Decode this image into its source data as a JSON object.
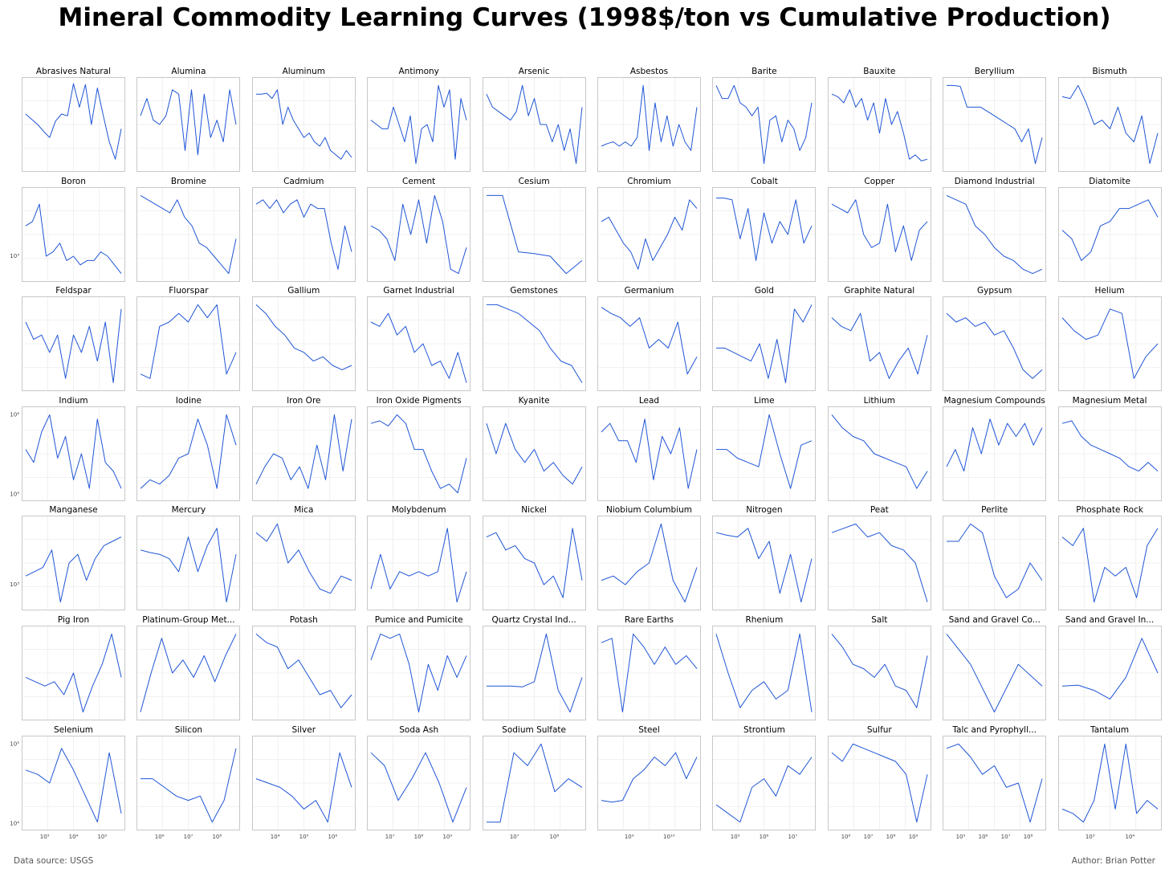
{
  "title": "Mineral Commodity Learning Curves (1998$/ton vs Cumulative Production)",
  "footer": {
    "source": "Data source: USGS",
    "author": "Author: Brian Potter"
  },
  "colors": {
    "line": "#1f55d6",
    "frame": "#c8c8c8",
    "grid": "#ececec"
  },
  "chart_data": {
    "type": "line",
    "layout": {
      "rows": 7,
      "cols": 10,
      "scale": "log-log",
      "grid": true,
      "legend": "none"
    },
    "panels": [
      {
        "name": "Abrasives Natural",
        "y": [
          0.62,
          0.56,
          0.5,
          0.42,
          0.35,
          0.54,
          0.62,
          0.6,
          0.97,
          0.7,
          0.96,
          0.5,
          0.92,
          0.6,
          0.3,
          0.1,
          0.45
        ]
      },
      {
        "name": "Alumina",
        "y": [
          0.6,
          0.8,
          0.55,
          0.5,
          0.6,
          0.9,
          0.85,
          0.2,
          0.9,
          0.15,
          0.85,
          0.35,
          0.55,
          0.3,
          0.9,
          0.5
        ]
      },
      {
        "name": "Aluminum",
        "y": [
          0.85,
          0.85,
          0.86,
          0.8,
          0.9,
          0.5,
          0.7,
          0.55,
          0.45,
          0.35,
          0.4,
          0.3,
          0.25,
          0.35,
          0.2,
          0.15,
          0.1,
          0.2,
          0.12
        ]
      },
      {
        "name": "Antimony",
        "y": [
          0.55,
          0.5,
          0.45,
          0.45,
          0.7,
          0.5,
          0.3,
          0.6,
          0.05,
          0.45,
          0.5,
          0.3,
          0.95,
          0.7,
          0.9,
          0.1,
          0.8,
          0.55
        ]
      },
      {
        "name": "Arsenic",
        "y": [
          0.85,
          0.7,
          0.65,
          0.6,
          0.55,
          0.65,
          0.95,
          0.6,
          0.8,
          0.5,
          0.5,
          0.3,
          0.5,
          0.2,
          0.45,
          0.05,
          0.7
        ]
      },
      {
        "name": "Asbestos",
        "y": [
          0.25,
          0.28,
          0.3,
          0.25,
          0.3,
          0.25,
          0.35,
          0.95,
          0.2,
          0.75,
          0.3,
          0.6,
          0.25,
          0.5,
          0.3,
          0.2,
          0.7
        ]
      },
      {
        "name": "Barite",
        "y": [
          0.95,
          0.8,
          0.8,
          0.95,
          0.75,
          0.7,
          0.6,
          0.7,
          0.05,
          0.55,
          0.6,
          0.3,
          0.55,
          0.45,
          0.2,
          0.35,
          0.75
        ]
      },
      {
        "name": "Bauxite",
        "y": [
          0.85,
          0.82,
          0.75,
          0.9,
          0.7,
          0.8,
          0.55,
          0.75,
          0.4,
          0.8,
          0.5,
          0.65,
          0.4,
          0.1,
          0.15,
          0.08,
          0.1
        ]
      },
      {
        "name": "Beryllium",
        "y": [
          0.95,
          0.95,
          0.94,
          0.7,
          0.7,
          0.7,
          0.65,
          0.6,
          0.55,
          0.5,
          0.45,
          0.3,
          0.45,
          0.05,
          0.35
        ]
      },
      {
        "name": "Bismuth",
        "y": [
          0.82,
          0.8,
          0.95,
          0.75,
          0.5,
          0.55,
          0.45,
          0.7,
          0.4,
          0.3,
          0.6,
          0.05,
          0.4
        ]
      },
      {
        "name": "Boron",
        "y": [
          0.6,
          0.65,
          0.85,
          0.25,
          0.3,
          0.4,
          0.2,
          0.25,
          0.15,
          0.2,
          0.2,
          0.3,
          0.25,
          0.15,
          0.05
        ]
      },
      {
        "name": "Bromine",
        "y": [
          0.95,
          0.9,
          0.85,
          0.8,
          0.75,
          0.9,
          0.7,
          0.6,
          0.4,
          0.35,
          0.25,
          0.15,
          0.05,
          0.45
        ]
      },
      {
        "name": "Cadmium",
        "y": [
          0.85,
          0.9,
          0.8,
          0.9,
          0.75,
          0.85,
          0.9,
          0.7,
          0.85,
          0.8,
          0.8,
          0.4,
          0.1,
          0.6,
          0.3
        ]
      },
      {
        "name": "Cement",
        "y": [
          0.6,
          0.55,
          0.45,
          0.2,
          0.85,
          0.5,
          0.9,
          0.4,
          0.95,
          0.65,
          0.1,
          0.05,
          0.35
        ]
      },
      {
        "name": "Cesium",
        "y": [
          0.95,
          0.95,
          0.3,
          0.28,
          0.25,
          0.05,
          0.2
        ]
      },
      {
        "name": "Chromium",
        "y": [
          0.65,
          0.7,
          0.55,
          0.4,
          0.3,
          0.1,
          0.45,
          0.2,
          0.35,
          0.5,
          0.7,
          0.55,
          0.9,
          0.8
        ]
      },
      {
        "name": "Cobalt",
        "y": [
          0.92,
          0.92,
          0.9,
          0.45,
          0.8,
          0.2,
          0.75,
          0.4,
          0.65,
          0.5,
          0.9,
          0.4,
          0.6
        ]
      },
      {
        "name": "Copper",
        "y": [
          0.85,
          0.8,
          0.75,
          0.9,
          0.5,
          0.35,
          0.4,
          0.85,
          0.3,
          0.6,
          0.2,
          0.55,
          0.65
        ]
      },
      {
        "name": "Diamond Industrial",
        "y": [
          0.95,
          0.9,
          0.85,
          0.6,
          0.5,
          0.35,
          0.25,
          0.2,
          0.1,
          0.05,
          0.1
        ]
      },
      {
        "name": "Diatomite",
        "y": [
          0.55,
          0.45,
          0.2,
          0.3,
          0.6,
          0.65,
          0.8,
          0.8,
          0.85,
          0.9,
          0.7
        ]
      },
      {
        "name": "Feldspar",
        "y": [
          0.75,
          0.55,
          0.6,
          0.4,
          0.6,
          0.1,
          0.6,
          0.4,
          0.7,
          0.3,
          0.75,
          0.05,
          0.9
        ]
      },
      {
        "name": "Fluorspar",
        "y": [
          0.15,
          0.1,
          0.7,
          0.75,
          0.85,
          0.75,
          0.95,
          0.8,
          0.95,
          0.15,
          0.4
        ]
      },
      {
        "name": "Gallium",
        "y": [
          0.95,
          0.85,
          0.7,
          0.6,
          0.45,
          0.4,
          0.3,
          0.35,
          0.25,
          0.2,
          0.25
        ]
      },
      {
        "name": "Garnet Industrial",
        "y": [
          0.75,
          0.7,
          0.85,
          0.6,
          0.7,
          0.4,
          0.5,
          0.25,
          0.3,
          0.1,
          0.4,
          0.05
        ]
      },
      {
        "name": "Gemstones",
        "y": [
          0.95,
          0.95,
          0.9,
          0.85,
          0.75,
          0.65,
          0.45,
          0.3,
          0.25,
          0.05
        ]
      },
      {
        "name": "Germanium",
        "y": [
          0.92,
          0.85,
          0.8,
          0.7,
          0.8,
          0.45,
          0.55,
          0.45,
          0.75,
          0.15,
          0.35
        ]
      },
      {
        "name": "Gold",
        "y": [
          0.45,
          0.45,
          0.4,
          0.35,
          0.3,
          0.5,
          0.1,
          0.55,
          0.05,
          0.9,
          0.75,
          0.95
        ]
      },
      {
        "name": "Graphite Natural",
        "y": [
          0.8,
          0.7,
          0.65,
          0.85,
          0.3,
          0.4,
          0.1,
          0.3,
          0.45,
          0.15,
          0.6
        ]
      },
      {
        "name": "Gypsum",
        "y": [
          0.85,
          0.75,
          0.8,
          0.7,
          0.75,
          0.6,
          0.65,
          0.45,
          0.2,
          0.1,
          0.2
        ]
      },
      {
        "name": "Helium",
        "y": [
          0.8,
          0.65,
          0.55,
          0.6,
          0.9,
          0.85,
          0.1,
          0.35,
          0.5
        ]
      },
      {
        "name": "Indium",
        "y": [
          0.55,
          0.4,
          0.75,
          0.95,
          0.45,
          0.7,
          0.2,
          0.5,
          0.1,
          0.9,
          0.4,
          0.3,
          0.1
        ]
      },
      {
        "name": "Iodine",
        "y": [
          0.1,
          0.2,
          0.15,
          0.25,
          0.45,
          0.5,
          0.9,
          0.6,
          0.1,
          0.95,
          0.6
        ]
      },
      {
        "name": "Iron Ore",
        "y": [
          0.15,
          0.35,
          0.5,
          0.45,
          0.2,
          0.35,
          0.1,
          0.6,
          0.2,
          0.95,
          0.3,
          0.9
        ]
      },
      {
        "name": "Iron Oxide Pigments",
        "y": [
          0.85,
          0.88,
          0.82,
          0.95,
          0.85,
          0.55,
          0.55,
          0.3,
          0.1,
          0.15,
          0.05,
          0.45
        ]
      },
      {
        "name": "Kyanite",
        "y": [
          0.85,
          0.5,
          0.85,
          0.55,
          0.4,
          0.55,
          0.3,
          0.4,
          0.25,
          0.15,
          0.35
        ]
      },
      {
        "name": "Lead",
        "y": [
          0.75,
          0.85,
          0.65,
          0.65,
          0.4,
          0.9,
          0.2,
          0.7,
          0.5,
          0.8,
          0.1,
          0.55
        ]
      },
      {
        "name": "Lime",
        "y": [
          0.55,
          0.55,
          0.45,
          0.4,
          0.35,
          0.95,
          0.5,
          0.1,
          0.6,
          0.65
        ]
      },
      {
        "name": "Lithium",
        "y": [
          0.95,
          0.8,
          0.7,
          0.65,
          0.5,
          0.45,
          0.4,
          0.35,
          0.1,
          0.3
        ]
      },
      {
        "name": "Magnesium Compounds",
        "y": [
          0.35,
          0.55,
          0.3,
          0.8,
          0.5,
          0.9,
          0.6,
          0.85,
          0.7,
          0.85,
          0.6,
          0.8
        ]
      },
      {
        "name": "Magnesium Metal",
        "y": [
          0.85,
          0.88,
          0.7,
          0.6,
          0.55,
          0.5,
          0.45,
          0.35,
          0.3,
          0.4,
          0.3
        ]
      },
      {
        "name": "Manganese",
        "y": [
          0.35,
          0.4,
          0.45,
          0.65,
          0.05,
          0.5,
          0.6,
          0.3,
          0.55,
          0.7,
          0.75,
          0.8
        ]
      },
      {
        "name": "Mercury",
        "y": [
          0.65,
          0.62,
          0.6,
          0.55,
          0.4,
          0.8,
          0.4,
          0.7,
          0.9,
          0.05,
          0.6
        ]
      },
      {
        "name": "Mica",
        "y": [
          0.85,
          0.75,
          0.95,
          0.5,
          0.65,
          0.4,
          0.2,
          0.15,
          0.35,
          0.3
        ]
      },
      {
        "name": "Molybdenum",
        "y": [
          0.2,
          0.6,
          0.2,
          0.4,
          0.35,
          0.4,
          0.35,
          0.4,
          0.9,
          0.05,
          0.4
        ]
      },
      {
        "name": "Nickel",
        "y": [
          0.8,
          0.85,
          0.65,
          0.7,
          0.55,
          0.5,
          0.25,
          0.35,
          0.1,
          0.9,
          0.3
        ]
      },
      {
        "name": "Niobium Columbium",
        "y": [
          0.3,
          0.35,
          0.25,
          0.4,
          0.5,
          0.95,
          0.3,
          0.05,
          0.45
        ]
      },
      {
        "name": "Nitrogen",
        "y": [
          0.85,
          0.82,
          0.8,
          0.9,
          0.55,
          0.75,
          0.15,
          0.6,
          0.05,
          0.55
        ]
      },
      {
        "name": "Peat",
        "y": [
          0.85,
          0.9,
          0.95,
          0.8,
          0.85,
          0.7,
          0.65,
          0.5,
          0.05
        ]
      },
      {
        "name": "Perlite",
        "y": [
          0.75,
          0.75,
          0.95,
          0.85,
          0.35,
          0.1,
          0.2,
          0.5,
          0.3
        ]
      },
      {
        "name": "Phosphate Rock",
        "y": [
          0.8,
          0.7,
          0.9,
          0.05,
          0.45,
          0.35,
          0.45,
          0.1,
          0.7,
          0.9
        ]
      },
      {
        "name": "Pig Iron",
        "y": [
          0.45,
          0.4,
          0.35,
          0.4,
          0.25,
          0.5,
          0.05,
          0.35,
          0.6,
          0.95,
          0.45
        ]
      },
      {
        "name": "Platinum-Group Met...",
        "y": [
          0.05,
          0.5,
          0.9,
          0.5,
          0.65,
          0.45,
          0.7,
          0.4,
          0.7,
          0.95
        ]
      },
      {
        "name": "Potash",
        "y": [
          0.95,
          0.85,
          0.8,
          0.55,
          0.65,
          0.45,
          0.25,
          0.3,
          0.1,
          0.25
        ]
      },
      {
        "name": "Pumice and Pumicite",
        "y": [
          0.65,
          0.95,
          0.9,
          0.95,
          0.6,
          0.05,
          0.6,
          0.3,
          0.7,
          0.45,
          0.7
        ]
      },
      {
        "name": "Quartz Crystal Ind...",
        "y": [
          0.35,
          0.35,
          0.35,
          0.34,
          0.4,
          0.95,
          0.3,
          0.05,
          0.45
        ]
      },
      {
        "name": "Rare Earths",
        "y": [
          0.85,
          0.9,
          0.05,
          0.95,
          0.8,
          0.6,
          0.8,
          0.6,
          0.7,
          0.55
        ]
      },
      {
        "name": "Rhenium",
        "y": [
          0.95,
          0.5,
          0.1,
          0.3,
          0.4,
          0.2,
          0.3,
          0.95,
          0.05
        ]
      },
      {
        "name": "Salt",
        "y": [
          0.95,
          0.8,
          0.6,
          0.55,
          0.45,
          0.6,
          0.35,
          0.3,
          0.1,
          0.7
        ]
      },
      {
        "name": "Sand and Gravel Co...",
        "y": [
          0.95,
          0.6,
          0.05,
          0.6,
          0.35
        ]
      },
      {
        "name": "Sand and Gravel In...",
        "y": [
          0.35,
          0.36,
          0.3,
          0.2,
          0.45,
          0.9,
          0.5
        ]
      },
      {
        "name": "Selenium",
        "y": [
          0.65,
          0.6,
          0.5,
          0.9,
          0.65,
          0.35,
          0.05,
          0.85,
          0.15
        ]
      },
      {
        "name": "Silicon",
        "y": [
          0.55,
          0.55,
          0.45,
          0.35,
          0.3,
          0.35,
          0.05,
          0.3,
          0.9
        ]
      },
      {
        "name": "Silver",
        "y": [
          0.55,
          0.5,
          0.45,
          0.35,
          0.2,
          0.3,
          0.05,
          0.85,
          0.45
        ]
      },
      {
        "name": "Soda Ash",
        "y": [
          0.85,
          0.7,
          0.3,
          0.55,
          0.85,
          0.5,
          0.05,
          0.45
        ]
      },
      {
        "name": "Sodium Sulfate",
        "y": [
          0.05,
          0.05,
          0.85,
          0.7,
          0.95,
          0.4,
          0.55,
          0.45
        ]
      },
      {
        "name": "Steel",
        "y": [
          0.3,
          0.28,
          0.3,
          0.55,
          0.65,
          0.8,
          0.7,
          0.85,
          0.55,
          0.8
        ]
      },
      {
        "name": "Strontium",
        "y": [
          0.25,
          0.15,
          0.05,
          0.45,
          0.55,
          0.35,
          0.7,
          0.6,
          0.8
        ]
      },
      {
        "name": "Sulfur",
        "y": [
          0.85,
          0.75,
          0.95,
          0.9,
          0.85,
          0.8,
          0.75,
          0.6,
          0.05,
          0.6
        ]
      },
      {
        "name": "Talc and Pyrophyll...",
        "y": [
          0.9,
          0.95,
          0.8,
          0.6,
          0.7,
          0.45,
          0.5,
          0.05,
          0.55
        ]
      },
      {
        "name": "Tantalum",
        "y": [
          0.2,
          0.15,
          0.05,
          0.3,
          0.95,
          0.2,
          0.95,
          0.15,
          0.3,
          0.2
        ]
      }
    ],
    "y_ticks": {
      "1": [
        "10³"
      ],
      "3": [
        "10⁶",
        "10⁵"
      ],
      "4": [
        "10³"
      ],
      "6": [
        "10⁵",
        "10⁴"
      ]
    },
    "x_ticks": [
      "10⁵|10⁴|10⁵",
      "10⁶|10⁷|10⁸",
      "10⁴|10⁵|10⁶",
      "10⁷|10⁸|10⁹",
      "10⁷|10⁸",
      "10⁹|10¹⁰",
      "10⁵|10⁶|10⁷",
      "10⁶|10⁷|10⁸|10⁹",
      "10⁵|10⁶|10⁷|10⁸",
      "10³|10⁴"
    ]
  }
}
